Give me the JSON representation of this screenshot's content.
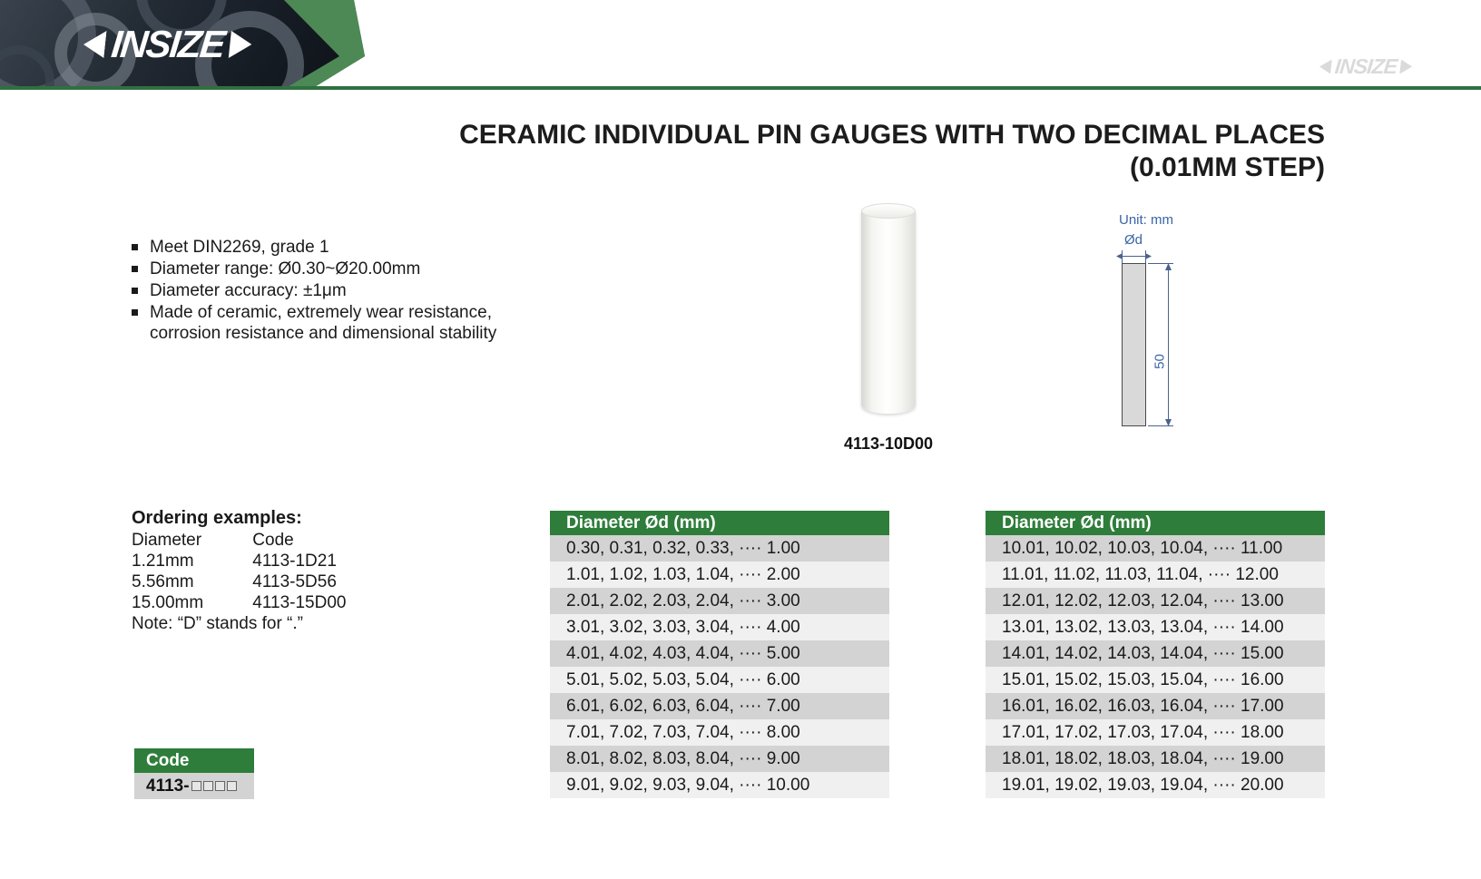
{
  "brand": {
    "logo_text": "INSIZE",
    "watermark_text": "INSIZE"
  },
  "title": {
    "line1": "CERAMIC INDIVIDUAL PIN GAUGES WITH TWO DECIMAL PLACES",
    "line2": "(0.01MM STEP)"
  },
  "features": [
    "Meet DIN2269, grade 1",
    "Diameter range: Ø0.30~Ø20.00mm",
    "Diameter accuracy: ±1μm",
    "Made of ceramic, extremely wear resistance, corrosion resistance and dimensional stability"
  ],
  "product": {
    "caption": "4113-10D00"
  },
  "drawing": {
    "unit_label": "Unit: mm",
    "diameter_label": "Ød",
    "length_label": "50"
  },
  "ordering": {
    "heading": "Ordering examples:",
    "col1_header": "Diameter",
    "col2_header": "Code",
    "rows": [
      {
        "diameter": "1.21mm",
        "code": "4113-1D21"
      },
      {
        "diameter": "5.56mm",
        "code": "4113-5D56"
      },
      {
        "diameter": "15.00mm",
        "code": "4113-15D00"
      }
    ],
    "note": "Note: “D”  stands for “.”"
  },
  "code_box": {
    "header": "Code",
    "prefix": "4113-"
  },
  "tables": [
    {
      "header": "Diameter Ød (mm)",
      "rows": [
        "0.30, 0.31, 0.32, 0.33, ···· 1.00",
        "1.01, 1.02, 1.03, 1.04, ···· 2.00",
        "2.01, 2.02, 2.03, 2.04, ···· 3.00",
        "3.01, 3.02, 3.03, 3.04, ···· 4.00",
        "4.01, 4.02, 4.03, 4.04, ···· 5.00",
        "5.01, 5.02, 5.03, 5.04, ···· 6.00",
        "6.01, 6.02, 6.03, 6.04, ···· 7.00",
        "7.01, 7.02, 7.03, 7.04, ···· 8.00",
        "8.01, 8.02, 8.03, 8.04, ···· 9.00",
        "9.01, 9.02, 9.03, 9.04, ···· 10.00"
      ]
    },
    {
      "header": "Diameter Ød (mm)",
      "rows": [
        "10.01, 10.02, 10.03, 10.04, ···· 11.00",
        "11.01, 11.02, 11.03, 11.04, ···· 12.00",
        "12.01, 12.02, 12.03, 12.04, ···· 13.00",
        "13.01, 13.02, 13.03, 13.04, ···· 14.00",
        "14.01, 14.02, 14.03, 14.04, ···· 15.00",
        "15.01, 15.02, 15.03, 15.04, ···· 16.00",
        "16.01, 16.02, 16.03, 16.04, ···· 17.00",
        "17.01, 17.02, 17.03, 17.04, ···· 18.00",
        "18.01, 18.02, 18.03, 18.04, ···· 19.00",
        "19.01, 19.02, 19.03, 19.04, ···· 20.00"
      ]
    }
  ],
  "colors": {
    "brand_green": "#2e7d3b",
    "chevron_green": "#4d8955",
    "row_gray": "#d3d3d3",
    "row_light": "#f0f0f0",
    "drawing_blue": "#3a64a8"
  }
}
